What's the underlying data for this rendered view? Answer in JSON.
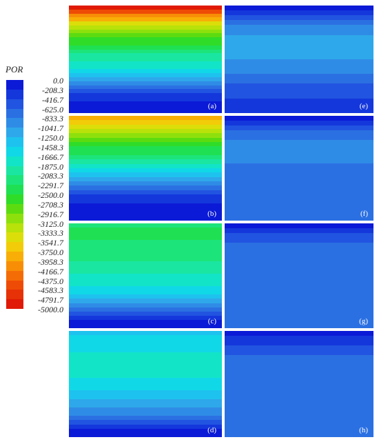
{
  "legend": {
    "title": "POR",
    "labels": [
      "0.0",
      "-208.3",
      "-416.7",
      "-625.0",
      "-833.3",
      "-1041.7",
      "-1250.0",
      "-1458.3",
      "-1666.7",
      "-1875.0",
      "-2083.3",
      "-2291.7",
      "-2500.0",
      "-2708.3",
      "-2916.7",
      "-3125.0",
      "-3333.3",
      "-3541.7",
      "-3750.0",
      "-3958.3",
      "-4166.7",
      "-4375.0",
      "-4583.3",
      "-4791.7",
      "-5000.0"
    ],
    "colors": [
      "#0b1ad6",
      "#1437dc",
      "#2154e0",
      "#2b70e2",
      "#2f8ce6",
      "#2ea8ea",
      "#1ec2ee",
      "#11d8e6",
      "#12e4c8",
      "#1ae6a2",
      "#1de47a",
      "#1fe052",
      "#2fdc28",
      "#5cdc10",
      "#8ee00c",
      "#b8e20a",
      "#dcde0a",
      "#f2cc08",
      "#f8ae06",
      "#f88e06",
      "#f46c06",
      "#ee4c06",
      "#e63206",
      "#e01a06"
    ]
  },
  "panels": [
    {
      "id": "a",
      "label": "(a)",
      "bands": [
        23,
        21,
        19,
        18,
        16,
        15,
        14,
        13,
        12,
        12,
        11,
        10,
        9,
        9,
        8,
        8,
        7,
        6,
        5,
        4,
        3,
        2,
        1,
        1,
        0,
        0,
        0
      ]
    },
    {
      "id": "b",
      "label": "(b)",
      "bands": [
        18,
        17,
        16,
        15,
        14,
        13,
        12,
        11,
        11,
        10,
        9,
        8,
        7,
        6,
        5,
        4,
        3,
        2,
        1,
        1,
        0,
        0,
        0,
        0
      ]
    },
    {
      "id": "c",
      "label": "(c)",
      "bands": [
        10,
        11,
        11,
        11,
        10,
        10,
        10,
        10,
        10,
        9,
        9,
        9,
        8,
        8,
        8,
        7,
        7,
        6,
        5,
        4,
        3,
        2,
        1,
        0,
        0
      ]
    },
    {
      "id": "d",
      "label": "(d)",
      "bands": [
        6,
        7,
        7,
        7,
        7,
        8,
        8,
        8,
        8,
        8,
        8,
        7,
        7,
        7,
        6,
        6,
        5,
        5,
        4,
        4,
        3,
        2,
        1,
        0,
        0
      ]
    },
    {
      "id": "e",
      "label": "(e)",
      "bands": [
        0,
        1,
        2,
        3,
        4,
        4,
        5,
        5,
        5,
        5,
        5,
        4,
        4,
        4,
        3,
        3,
        2,
        2,
        2,
        1,
        1,
        1
      ]
    },
    {
      "id": "f",
      "label": "(f)",
      "bands": [
        0,
        1,
        2,
        3,
        3,
        4,
        4,
        4,
        4,
        4,
        3,
        3,
        3,
        3,
        3,
        3,
        3,
        3,
        3,
        3,
        3,
        3
      ]
    },
    {
      "id": "g",
      "label": "(g)",
      "bands": [
        0,
        1,
        2,
        2,
        3,
        3,
        3,
        3,
        3,
        3,
        3,
        3,
        3,
        3,
        3,
        3,
        3,
        3,
        3,
        3,
        3,
        3
      ]
    },
    {
      "id": "h",
      "label": "(h)",
      "bands": [
        0,
        1,
        1,
        2,
        2,
        3,
        3,
        3,
        3,
        3,
        3,
        3,
        3,
        3,
        3,
        3,
        3,
        3,
        3,
        3,
        3,
        3
      ]
    }
  ]
}
